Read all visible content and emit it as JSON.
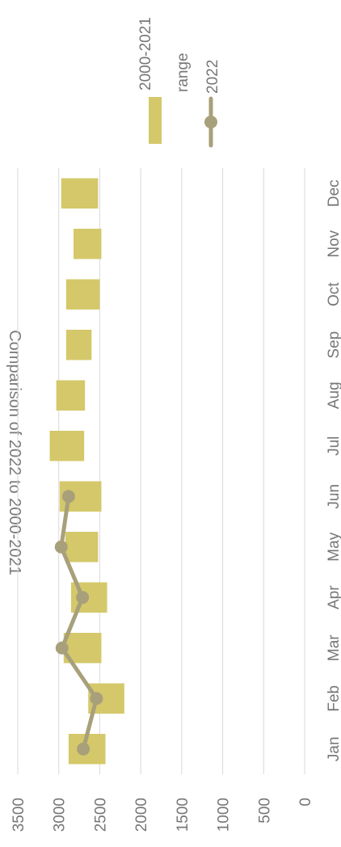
{
  "chart_data": {
    "type": "bar",
    "title": "Comparison of 2022 to 2000-2021",
    "categories": [
      "Jan",
      "Feb",
      "Mar",
      "Apr",
      "May",
      "Jun",
      "Jul",
      "Aug",
      "Sep",
      "Oct",
      "Nov",
      "Dec"
    ],
    "series": [
      {
        "name": "2000-2021 range",
        "kind": "floating-range",
        "color": "#d4c86a",
        "low": [
          2430,
          2200,
          2480,
          2410,
          2520,
          2480,
          2690,
          2680,
          2600,
          2500,
          2480,
          2520
        ],
        "high": [
          2880,
          2640,
          2940,
          2850,
          2920,
          2990,
          3110,
          3030,
          2910,
          2910,
          2820,
          2970
        ]
      },
      {
        "name": "2022",
        "kind": "line",
        "color": "#a8a07a",
        "values": [
          2700,
          2540,
          2960,
          2710,
          2970,
          2880,
          null,
          null,
          null,
          null,
          null,
          null
        ]
      }
    ],
    "value_axis": {
      "ticks": [
        0,
        500,
        1000,
        1500,
        2000,
        2500,
        3000,
        3500
      ],
      "range": [
        0,
        3500
      ]
    },
    "grid": true,
    "legend_position": "top-right",
    "orientation": "rotated 90° clockwise"
  }
}
